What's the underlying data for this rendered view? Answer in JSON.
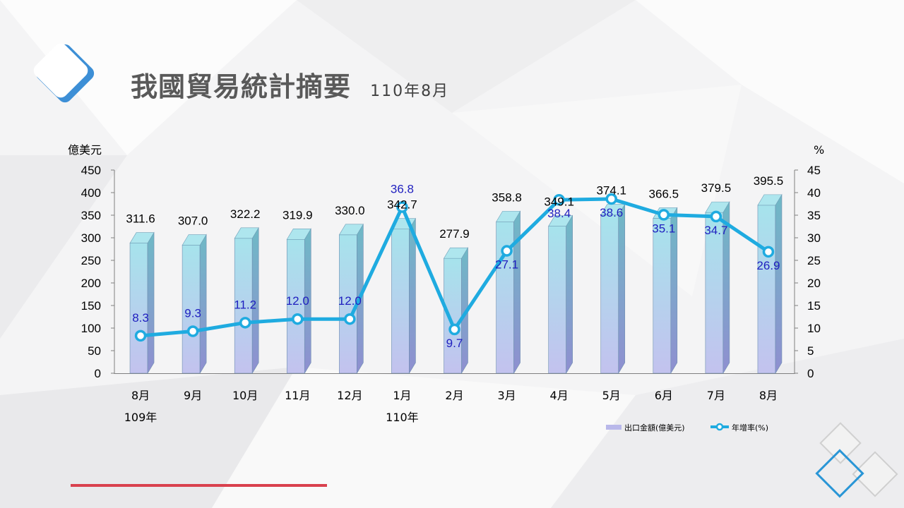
{
  "slide": {
    "title": "我國貿易統計摘要",
    "subtitle": "110年8月"
  },
  "chart_data": {
    "type": "bar",
    "categories": [
      "8月",
      "9月",
      "10月",
      "11月",
      "12月",
      "1月",
      "2月",
      "3月",
      "4月",
      "5月",
      "6月",
      "7月",
      "8月"
    ],
    "year_labels": [
      {
        "category_index": 0,
        "label": "109年"
      },
      {
        "category_index": 5,
        "label": "110年"
      }
    ],
    "series": [
      {
        "name": "出口金額(億美元)",
        "type": "bar",
        "axis": "left",
        "values": [
          311.6,
          307.0,
          322.2,
          319.9,
          330.0,
          342.7,
          277.9,
          358.8,
          349.1,
          374.1,
          366.5,
          379.5,
          395.5
        ]
      },
      {
        "name": "年增率(%)",
        "type": "line",
        "axis": "right",
        "values": [
          8.3,
          9.3,
          11.2,
          12.0,
          12.0,
          36.8,
          9.7,
          27.1,
          38.4,
          38.6,
          35.1,
          34.7,
          26.9
        ]
      }
    ],
    "ylabel_left": "億美元",
    "ylabel_right": "%",
    "ylim_left": [
      0,
      450
    ],
    "ylim_right": [
      0,
      45
    ],
    "yticks_left": [
      0,
      50,
      100,
      150,
      200,
      250,
      300,
      350,
      400,
      450
    ],
    "yticks_right": [
      0,
      5,
      10,
      15,
      20,
      25,
      30,
      35,
      40,
      45
    ],
    "grid": false,
    "legend_position": "bottom-right",
    "colors": {
      "bar_top": "#a6e3ec",
      "bar_bottom": "#c3c2ee",
      "line": "#1fabe0",
      "line_label": "#1f1fbf"
    }
  }
}
